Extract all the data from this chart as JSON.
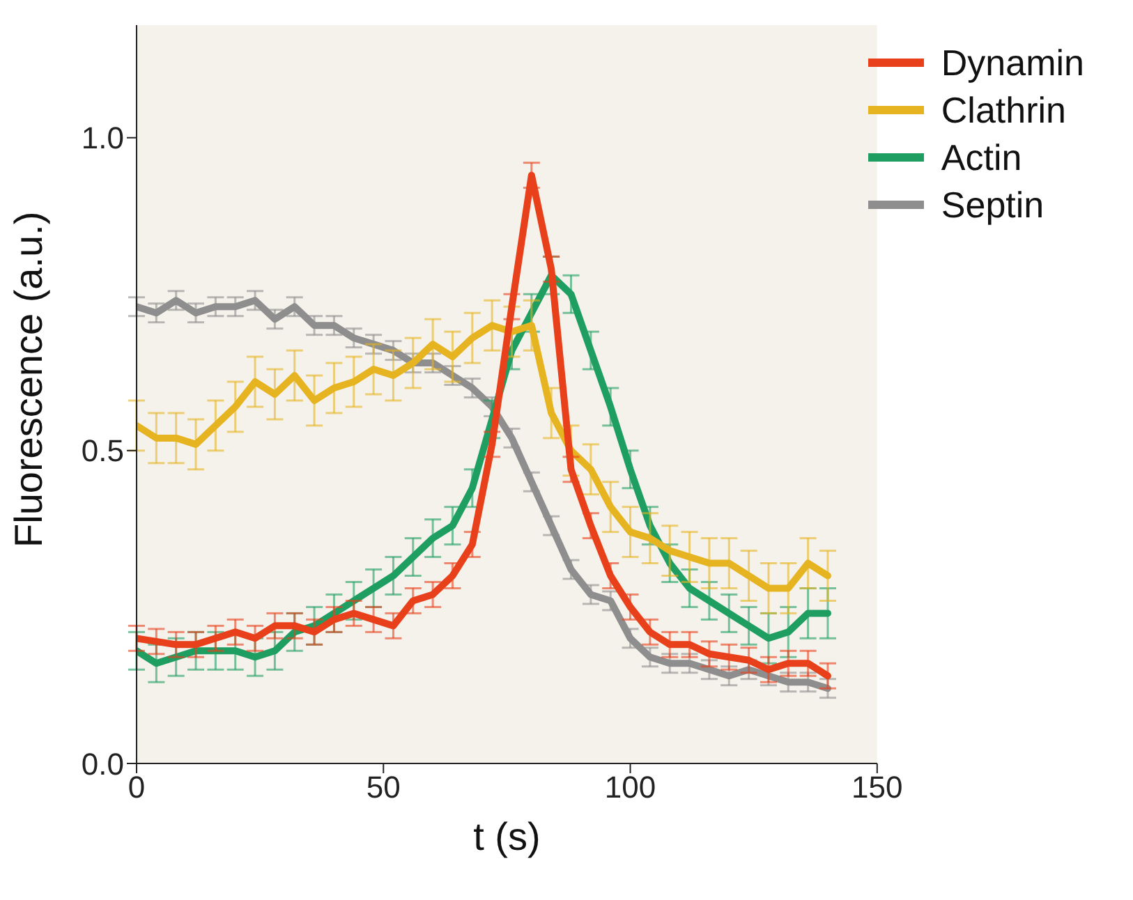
{
  "chart_data": {
    "type": "line",
    "xlabel": "t (s)",
    "ylabel": "Fluorescence (a.u.)",
    "x": [
      0,
      4,
      8,
      12,
      16,
      20,
      24,
      28,
      32,
      36,
      40,
      44,
      48,
      52,
      56,
      60,
      64,
      68,
      72,
      76,
      80,
      84,
      88,
      92,
      96,
      100,
      104,
      108,
      112,
      116,
      120,
      124,
      128,
      132,
      136,
      140
    ],
    "series": [
      {
        "name": "Dynamin",
        "color": "#e8401a",
        "values": [
          0.2,
          0.195,
          0.19,
          0.19,
          0.2,
          0.21,
          0.2,
          0.22,
          0.22,
          0.21,
          0.23,
          0.24,
          0.23,
          0.22,
          0.26,
          0.27,
          0.3,
          0.35,
          0.51,
          0.73,
          0.94,
          0.79,
          0.47,
          0.38,
          0.3,
          0.25,
          0.21,
          0.19,
          0.19,
          0.175,
          0.17,
          0.165,
          0.15,
          0.16,
          0.16,
          0.14
        ],
        "errors": [
          0.02,
          0.02,
          0.02,
          0.02,
          0.02,
          0.02,
          0.02,
          0.02,
          0.02,
          0.02,
          0.02,
          0.02,
          0.02,
          0.02,
          0.02,
          0.02,
          0.02,
          0.02,
          0.02,
          0.02,
          0.02,
          0.02,
          0.02,
          0.02,
          0.02,
          0.02,
          0.02,
          0.02,
          0.02,
          0.02,
          0.02,
          0.02,
          0.02,
          0.02,
          0.02,
          0.02
        ]
      },
      {
        "name": "Clathrin",
        "color": "#e6b421",
        "values": [
          0.54,
          0.52,
          0.52,
          0.51,
          0.54,
          0.57,
          0.61,
          0.59,
          0.62,
          0.58,
          0.6,
          0.61,
          0.63,
          0.62,
          0.64,
          0.67,
          0.65,
          0.68,
          0.7,
          0.69,
          0.7,
          0.56,
          0.5,
          0.47,
          0.41,
          0.37,
          0.36,
          0.34,
          0.33,
          0.32,
          0.32,
          0.3,
          0.28,
          0.28,
          0.32,
          0.3
        ],
        "errors": [
          0.04,
          0.04,
          0.04,
          0.04,
          0.04,
          0.04,
          0.04,
          0.04,
          0.04,
          0.04,
          0.04,
          0.04,
          0.04,
          0.04,
          0.04,
          0.04,
          0.04,
          0.04,
          0.04,
          0.04,
          0.04,
          0.04,
          0.04,
          0.04,
          0.04,
          0.04,
          0.04,
          0.04,
          0.04,
          0.04,
          0.04,
          0.04,
          0.04,
          0.04,
          0.04,
          0.04
        ]
      },
      {
        "name": "Actin",
        "color": "#1f9e62",
        "values": [
          0.18,
          0.16,
          0.17,
          0.18,
          0.18,
          0.18,
          0.17,
          0.18,
          0.21,
          0.22,
          0.24,
          0.26,
          0.28,
          0.3,
          0.33,
          0.36,
          0.38,
          0.44,
          0.55,
          0.66,
          0.72,
          0.78,
          0.75,
          0.66,
          0.57,
          0.47,
          0.38,
          0.32,
          0.28,
          0.26,
          0.24,
          0.22,
          0.2,
          0.21,
          0.24,
          0.24
        ],
        "errors": [
          0.03,
          0.03,
          0.03,
          0.03,
          0.03,
          0.03,
          0.03,
          0.03,
          0.03,
          0.03,
          0.03,
          0.03,
          0.03,
          0.03,
          0.03,
          0.03,
          0.03,
          0.03,
          0.03,
          0.03,
          0.03,
          0.03,
          0.03,
          0.03,
          0.03,
          0.03,
          0.03,
          0.03,
          0.03,
          0.03,
          0.03,
          0.03,
          0.04,
          0.04,
          0.04,
          0.04
        ]
      },
      {
        "name": "Septin",
        "color": "#8e8e8e",
        "values": [
          0.73,
          0.72,
          0.74,
          0.72,
          0.73,
          0.73,
          0.74,
          0.71,
          0.73,
          0.7,
          0.7,
          0.68,
          0.67,
          0.66,
          0.64,
          0.64,
          0.62,
          0.6,
          0.57,
          0.52,
          0.45,
          0.38,
          0.31,
          0.27,
          0.26,
          0.2,
          0.17,
          0.16,
          0.16,
          0.15,
          0.14,
          0.15,
          0.14,
          0.13,
          0.13,
          0.12
        ],
        "errors": [
          0.015,
          0.015,
          0.015,
          0.015,
          0.015,
          0.015,
          0.015,
          0.015,
          0.015,
          0.015,
          0.015,
          0.015,
          0.015,
          0.015,
          0.015,
          0.015,
          0.015,
          0.015,
          0.015,
          0.015,
          0.015,
          0.015,
          0.015,
          0.015,
          0.015,
          0.015,
          0.015,
          0.015,
          0.015,
          0.015,
          0.015,
          0.015,
          0.015,
          0.015,
          0.015,
          0.015
        ]
      }
    ],
    "xlim": [
      0,
      150
    ],
    "xticks": [
      0,
      50,
      100,
      150
    ],
    "ylim": [
      0,
      1.18
    ],
    "yticks": [
      {
        "value": 0,
        "label": "0.0"
      },
      {
        "value": 0.5,
        "label": "0.5"
      },
      {
        "value": 1,
        "label": "1.0"
      }
    ],
    "grid": false,
    "legend": "top right",
    "marker": "none",
    "line_style": "solid"
  }
}
